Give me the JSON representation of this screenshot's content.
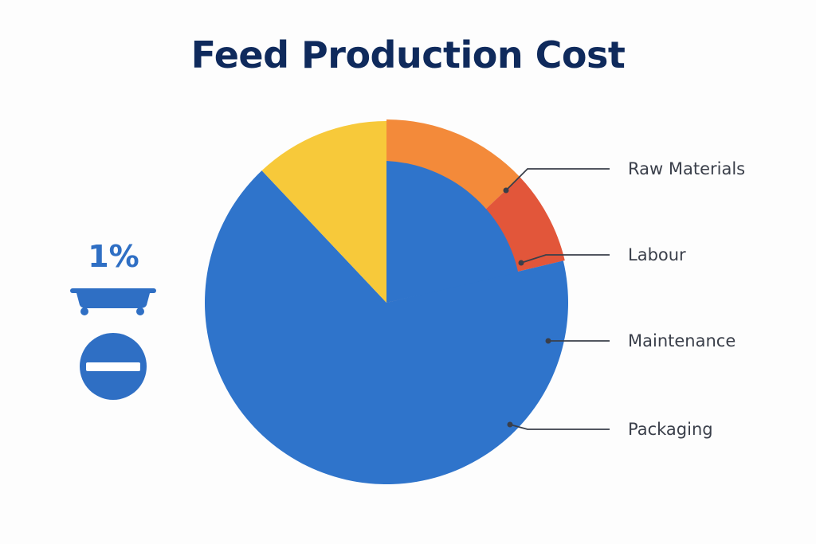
{
  "chart_data": {
    "type": "pie",
    "title": "Feed Production Cost",
    "categories": [
      "Raw Materials",
      "Labour",
      "Maintenance",
      "Packaging"
    ],
    "legend_placement": "right",
    "slices": [
      {
        "label": "Packaging",
        "value": 72,
        "color": "#2f74cb"
      },
      {
        "label": "Raw Materials",
        "value": 14,
        "color": "#f38a3a"
      },
      {
        "label": "Labour",
        "value": 9,
        "color": "#e2563a"
      }
    ],
    "unlabeled_slices": [
      {
        "value": 13,
        "color": "#f7c93a"
      }
    ]
  },
  "side_panel": {
    "percent_text": "1%",
    "icons": [
      "bathtub-icon",
      "minus-circle-icon"
    ],
    "accent_color": "#2f6fc4"
  },
  "colors": {
    "title": "#0f2a5c",
    "leader_line": "#3a3f4a",
    "background": "#fdfdfd"
  }
}
